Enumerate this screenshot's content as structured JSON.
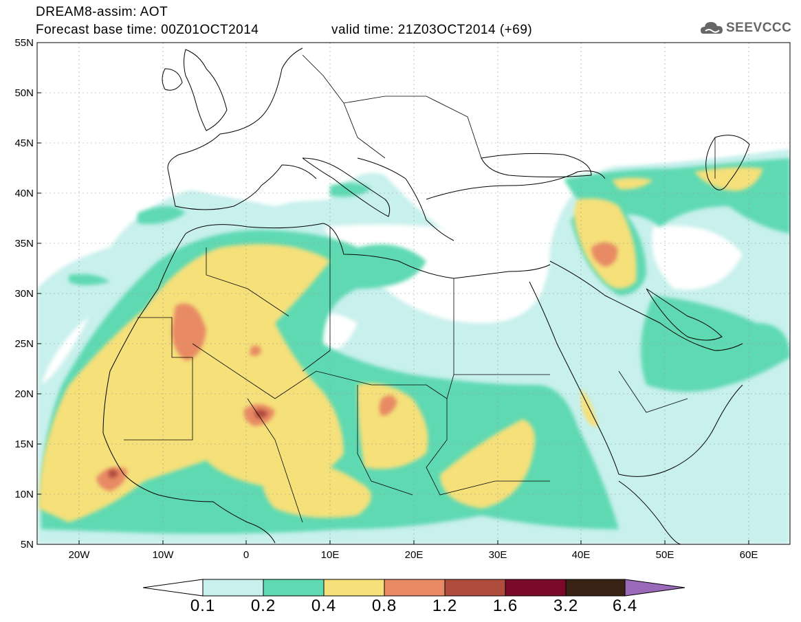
{
  "header": {
    "title_line1": "DREAM8-assim: AOT",
    "title_line2_left": "Forecast base time: 00Z01OCT2014",
    "title_line2_right": "valid time: 21Z03OCT2014 (+69)",
    "logo_text": "SEEVCCC",
    "logo_icon": "cloud-icon"
  },
  "map": {
    "lon_range": [
      -25,
      65
    ],
    "lat_range": [
      5,
      55
    ],
    "grid": true,
    "lat_labels": [
      "55N",
      "50N",
      "45N",
      "40N",
      "35N",
      "30N",
      "25N",
      "20N",
      "15N",
      "10N",
      "5N"
    ],
    "lon_labels": [
      "20W",
      "10W",
      "0",
      "10E",
      "20E",
      "30E",
      "40E",
      "50E",
      "60E"
    ]
  },
  "colorbar": {
    "labels": [
      "0.1",
      "0.2",
      "0.4",
      "0.8",
      "1.2",
      "1.6",
      "3.2",
      "6.4"
    ],
    "colors": [
      "#c8f0ec",
      "#5fd9b2",
      "#f5e07a",
      "#e88a64",
      "#b04c3e",
      "#7a0a28",
      "#3a2314",
      "#9a6ab8"
    ],
    "extend": "both"
  },
  "colors": {
    "aot_0_1": "#c8f0ec",
    "aot_0_2": "#5fd9b2",
    "aot_0_4": "#f5e07a",
    "aot_0_8": "#e88a64",
    "aot_1_2": "#b04c3e",
    "aot_1_6": "#7a0a28"
  }
}
